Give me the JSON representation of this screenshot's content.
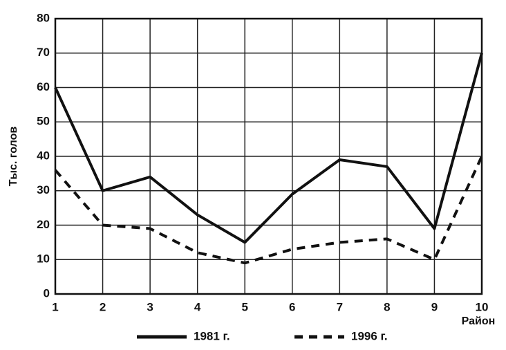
{
  "chart_data": {
    "type": "line",
    "x_label": "Район",
    "y_label": "Тыс. голов",
    "x": [
      1,
      2,
      3,
      4,
      5,
      6,
      7,
      8,
      9,
      10
    ],
    "xlim": [
      1,
      10
    ],
    "xticks": [
      1,
      2,
      3,
      4,
      5,
      6,
      7,
      8,
      9,
      10
    ],
    "ylim": [
      0,
      80
    ],
    "yticks": [
      0,
      10,
      20,
      30,
      40,
      50,
      60,
      70,
      80
    ],
    "grid": true,
    "legend": "bottom",
    "series": [
      {
        "name": "1981 г.",
        "color": "#111111",
        "linestyle": "solid",
        "values": [
          60,
          30,
          34,
          23,
          15,
          29,
          39,
          37,
          19,
          70
        ]
      },
      {
        "name": "1996 г.",
        "color": "#111111",
        "linestyle": "dashed",
        "values": [
          36,
          20,
          19,
          12,
          9,
          13,
          15,
          16,
          10,
          40
        ]
      }
    ]
  }
}
